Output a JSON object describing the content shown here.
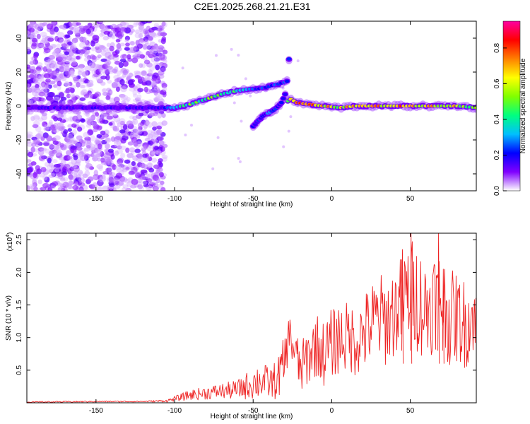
{
  "title": "C2E1.2025.268.21.21.E31",
  "chart_data": [
    {
      "type": "heatmap",
      "xlabel": "Height of straight line (km)",
      "ylabel": "Frequency (Hz)",
      "xlim": [
        -194,
        92
      ],
      "ylim": [
        -50,
        50
      ],
      "x_ticks": [
        -150,
        -100,
        -50,
        0,
        50
      ],
      "x_tick_labels": [
        "-150",
        "-100",
        "-50",
        "0",
        "50"
      ],
      "y_ticks": [
        -40,
        -20,
        0,
        20,
        40
      ],
      "y_tick_labels": [
        "-40",
        "-20",
        "0",
        "20",
        "40"
      ],
      "colorbar": {
        "label": "Normalized spectral amplitude",
        "range": [
          0.0,
          0.95
        ],
        "ticks": [
          0.0,
          0.2,
          0.4,
          0.6,
          0.8
        ],
        "tick_labels": [
          "0.0",
          "0.2",
          "0.4",
          "0.6",
          "0.8"
        ],
        "colormap": [
          "#ffffff",
          "#8000ff",
          "#0000ff",
          "#00bfff",
          "#00ff80",
          "#80ff00",
          "#ffff00",
          "#ff8000",
          "#ff0000",
          "#ff00a0"
        ]
      },
      "noise_region_x": [
        -194,
        -106
      ],
      "ridge": {
        "x": [
          -194,
          -110,
          -105,
          -100,
          -90,
          -80,
          -70,
          -60,
          -52,
          -47,
          -42,
          -38,
          -34,
          -30,
          -28,
          -26,
          -22,
          -15,
          -5,
          5,
          15,
          25,
          40,
          55,
          70,
          80,
          92
        ],
        "freq": [
          -1,
          -1,
          -1,
          -1,
          1,
          4,
          7,
          9,
          10,
          10,
          11,
          12,
          13,
          14,
          3,
          4,
          2,
          1,
          0,
          -1,
          0,
          0,
          0,
          0,
          0,
          0,
          -1
        ],
        "amp": [
          0.2,
          0.2,
          0.3,
          0.5,
          0.55,
          0.6,
          0.6,
          0.55,
          0.4,
          0.3,
          0.3,
          0.3,
          0.35,
          0.3,
          0.6,
          0.8,
          0.9,
          0.85,
          0.8,
          0.75,
          0.8,
          0.8,
          0.85,
          0.85,
          0.8,
          0.75,
          0.6
        ]
      },
      "branch": {
        "x": [
          -50,
          -44,
          -40,
          -36,
          -32,
          -29,
          -27
        ],
        "freq": [
          -12,
          -6,
          -4,
          -2,
          2,
          8,
          30
        ],
        "amp": [
          0.25,
          0.3,
          0.35,
          0.3,
          0.3,
          0.3,
          0.3
        ]
      }
    },
    {
      "type": "line",
      "xlabel": "Height of straight line (km)",
      "ylabel": "SNR (10 * v/v)",
      "y_multiplier_label": "(x10",
      "y_multiplier_exponent": "4",
      "y_multiplier_close": ")",
      "xlim": [
        -194,
        92
      ],
      "ylim": [
        0,
        2.6
      ],
      "x_ticks": [
        -150,
        -100,
        -50,
        0,
        50
      ],
      "x_tick_labels": [
        "-150",
        "-100",
        "-50",
        "0",
        "50"
      ],
      "y_ticks": [
        0.5,
        1.0,
        1.5,
        2.0,
        2.5
      ],
      "y_tick_labels": [
        "0.5",
        "1.0",
        "1.5",
        "2.0",
        "2.5"
      ],
      "color": "#ee2222",
      "series": [
        {
          "name": "SNR",
          "x": [
            -194,
            -150,
            -120,
            -105,
            -100,
            -90,
            -80,
            -70,
            -60,
            -50,
            -45,
            -40,
            -35,
            -30,
            -27,
            -25,
            -20,
            -15,
            -10,
            -5,
            0,
            5,
            10,
            15,
            20,
            25,
            30,
            35,
            40,
            45,
            50,
            55,
            60,
            65,
            70,
            75,
            80,
            85,
            90,
            92
          ],
          "y": [
            0.01,
            0.02,
            0.02,
            0.03,
            0.06,
            0.12,
            0.15,
            0.18,
            0.2,
            0.3,
            0.35,
            0.3,
            0.35,
            0.6,
            1.1,
            0.9,
            0.5,
            0.7,
            0.9,
            0.75,
            0.9,
            1.0,
            1.0,
            0.95,
            1.05,
            1.2,
            1.3,
            1.25,
            1.4,
            1.55,
            1.75,
            1.6,
            1.4,
            1.6,
            1.6,
            1.3,
            1.3,
            1.2,
            1.35,
            1.2
          ],
          "spread": [
            0.01,
            0.01,
            0.01,
            0.02,
            0.04,
            0.08,
            0.1,
            0.12,
            0.15,
            0.25,
            0.3,
            0.25,
            0.3,
            0.45,
            0.25,
            0.4,
            0.4,
            0.45,
            0.5,
            0.5,
            0.55,
            0.55,
            0.55,
            0.55,
            0.6,
            0.65,
            0.7,
            0.7,
            0.7,
            0.75,
            0.8,
            0.85,
            0.8,
            0.8,
            0.75,
            0.75,
            0.7,
            0.7,
            0.6,
            0.5
          ]
        }
      ],
      "peaks": [
        {
          "x": 50.5,
          "y": 2.6
        },
        {
          "x": 68,
          "y": 2.6
        },
        {
          "x": 71,
          "y": 2.05
        },
        {
          "x": 45,
          "y": 2.35
        }
      ]
    }
  ]
}
